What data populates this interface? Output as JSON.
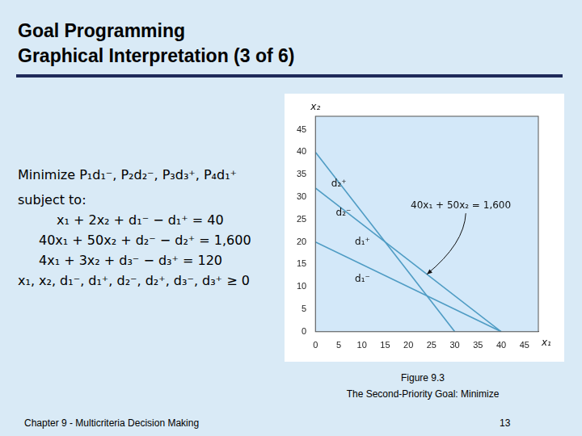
{
  "header": {
    "title": "Goal Programming",
    "subtitle": "Graphical Interpretation (3 of 6)"
  },
  "body": {
    "objective": "Minimize  P₁d₁⁻, P₂d₂⁻, P₃d₃⁺, P₄d₁⁺",
    "subject_to": "subject to:",
    "constraints": [
      "x₁ + 2x₂ + d₁⁻ − d₁⁺ = 40",
      "40x₁ + 50x₂ + d₂⁻ − d₂⁺ = 1,600",
      "4x₁ + 3x₂ + d₃⁻ − d₃⁺ = 120",
      "x₁, x₂, d₁⁻, d₁⁺, d₂⁻, d₂⁺, d₃⁻, d₃⁺ ≥ 0"
    ]
  },
  "caption": {
    "figure": "Figure 9.3",
    "text": "The Second-Priority Goal:  Minimize"
  },
  "footer": {
    "chapter": "Chapter 9 - Multicriteria Decision Making",
    "page": "13"
  },
  "chart_data": {
    "type": "line",
    "x_label": "x₁",
    "y_label": "x₂",
    "series": [
      {
        "x": [
          0,
          40
        ],
        "values": [
          20,
          0
        ],
        "color": "#4f9cc4"
      },
      {
        "x": [
          0,
          40
        ],
        "values": [
          32,
          0
        ],
        "color": "#4f9cc4"
      },
      {
        "x": [
          0,
          30
        ],
        "values": [
          40,
          0
        ],
        "color": "#4f9cc4"
      }
    ],
    "xlim": [
      0,
      48
    ],
    "ylim": [
      0,
      48
    ],
    "xticks": [
      0,
      5,
      10,
      15,
      20,
      25,
      30,
      35,
      40,
      45
    ],
    "yticks": [
      0,
      5,
      10,
      15,
      20,
      25,
      30,
      35,
      40,
      45
    ],
    "grid": false,
    "annotations": [
      {
        "text": "d₂⁺",
        "x": 3.4,
        "y": 33
      },
      {
        "text": "d₂⁻",
        "x": 4.4,
        "y": 26.5
      },
      {
        "text": "d₁⁺",
        "x": 8.5,
        "y": 20
      },
      {
        "text": "d₁⁻",
        "x": 8.5,
        "y": 11.7
      },
      {
        "text": "40x₁ + 50x₂ = 1,600",
        "x": 20.5,
        "y": 28,
        "arrow_to": [
          24,
          12.8
        ]
      }
    ]
  }
}
